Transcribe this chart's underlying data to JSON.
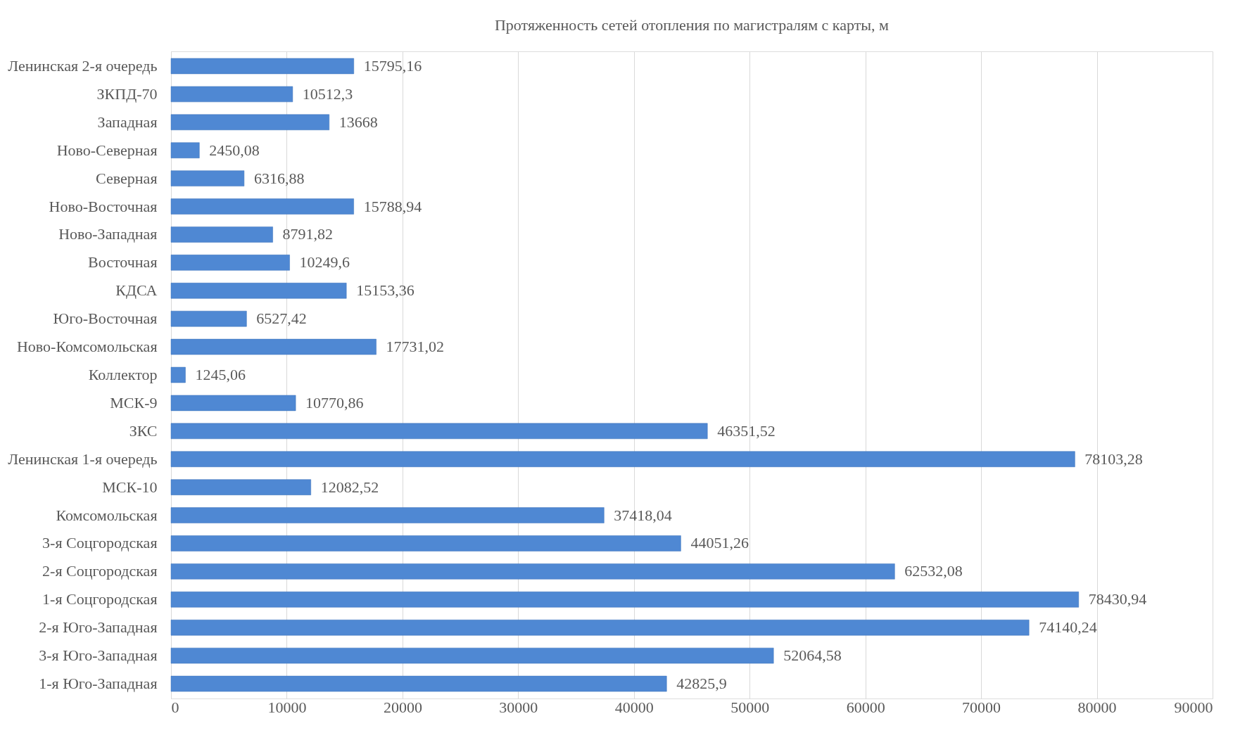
{
  "chart_data": {
    "type": "bar",
    "orientation": "horizontal",
    "title": "Протяженность сетей отопления по магистралям с карты, м",
    "categories": [
      "Ленинская 2-я очередь",
      "ЗКПД-70",
      "Западная",
      "Ново-Северная",
      "Северная",
      "Ново-Восточная",
      "Ново-Западная",
      "Восточная",
      "КДСА",
      "Юго-Восточная",
      "Ново-Комсомольская",
      "Коллектор",
      "МСК-9",
      "ЗКС",
      "Ленинская 1-я очередь",
      "МСК-10",
      "Комсомольская",
      "3-я Соцгородская",
      "2-я Соцгородская",
      "1-я Соцгородская",
      "2-я Юго-Западная",
      "3-я Юго-Западная",
      "1-я Юго-Западная"
    ],
    "values": [
      15795.16,
      10512.3,
      13668,
      2450.08,
      6316.88,
      15788.94,
      8791.82,
      10249.6,
      15153.36,
      6527.42,
      17731.02,
      1245.06,
      10770.86,
      46351.52,
      78103.28,
      12082.52,
      37418.04,
      44051.26,
      62532.08,
      78430.94,
      74140.24,
      52064.58,
      42825.9
    ],
    "value_labels": [
      "15795,16",
      "10512,3",
      "13668",
      "2450,08",
      "6316,88",
      "15788,94",
      "8791,82",
      "10249,6",
      "15153,36",
      "6527,42",
      "17731,02",
      "1245,06",
      "10770,86",
      "46351,52",
      "78103,28",
      "12082,52",
      "37418,04",
      "44051,26",
      "62532,08",
      "78430,94",
      "74140,24",
      "52064,58",
      "42825,9"
    ],
    "color": "#4f88d3",
    "xlim": [
      0,
      90000
    ],
    "xticks": [
      0,
      10000,
      20000,
      30000,
      40000,
      50000,
      60000,
      70000,
      80000,
      90000
    ],
    "grid": "x"
  }
}
